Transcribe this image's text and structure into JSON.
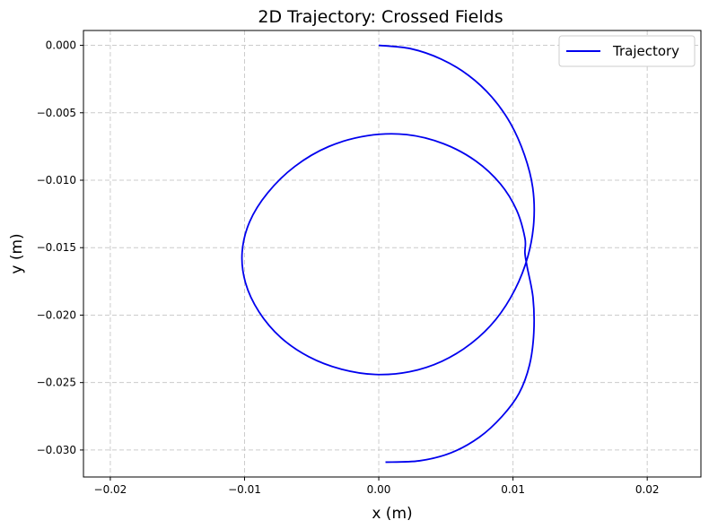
{
  "chart_data": {
    "type": "line",
    "title": "2D Trajectory: Crossed Fields",
    "xlabel": "x (m)",
    "ylabel": "y (m)",
    "xlim": [
      -0.022,
      0.024
    ],
    "ylim": [
      -0.032,
      0.0011
    ],
    "grid": true,
    "legend_position": "top-right",
    "xticks": [
      -0.02,
      -0.01,
      0.0,
      0.01,
      0.02
    ],
    "xtick_labels": [
      "−0.02",
      "−0.01",
      "0.00",
      "0.01",
      "0.02"
    ],
    "yticks": [
      0.0,
      -0.005,
      -0.01,
      -0.015,
      -0.02,
      -0.025,
      -0.03
    ],
    "ytick_labels": [
      "0.000",
      "−0.005",
      "−0.010",
      "−0.015",
      "−0.020",
      "−0.025",
      "−0.030"
    ],
    "series": [
      {
        "name": "Trajectory",
        "color": "#0000ee",
        "x": [
          0.0,
          0.00238,
          0.00465,
          0.00669,
          0.00842,
          0.00982,
          0.01086,
          0.01147,
          0.01155,
          0.01111,
          0.01015,
          0.00872,
          0.00688,
          0.00471,
          0.00229,
          -0.00026,
          -0.00282,
          -0.00522,
          -0.0073,
          -0.00892,
          -0.00993,
          -0.01018,
          -0.00962,
          -0.00828,
          -0.00626,
          -0.00372,
          -0.00086,
          0.00208,
          0.00484,
          0.00722,
          0.00906,
          0.01027,
          0.01089,
          0.01089,
          0.01105,
          0.01149,
          0.01155,
          0.01123,
          0.01045,
          0.00919,
          0.00749,
          0.0054,
          0.00303,
          0.0005
        ],
        "y": [
          0.0,
          -0.00025,
          -0.00102,
          -0.00223,
          -0.00383,
          -0.0058,
          -0.00814,
          -0.01055,
          -0.0131,
          -0.01564,
          -0.0181,
          -0.02032,
          -0.0221,
          -0.02342,
          -0.0242,
          -0.0244,
          -0.024,
          -0.02308,
          -0.02166,
          -0.01976,
          -0.0176,
          -0.01535,
          -0.01308,
          -0.01094,
          -0.00898,
          -0.0075,
          -0.0067,
          -0.00662,
          -0.0073,
          -0.00857,
          -0.01027,
          -0.01222,
          -0.0143,
          -0.0154,
          -0.0164,
          -0.0187,
          -0.0213,
          -0.0237,
          -0.0258,
          -0.0275,
          -0.02905,
          -0.0302,
          -0.0308,
          -0.0309
        ]
      }
    ]
  }
}
